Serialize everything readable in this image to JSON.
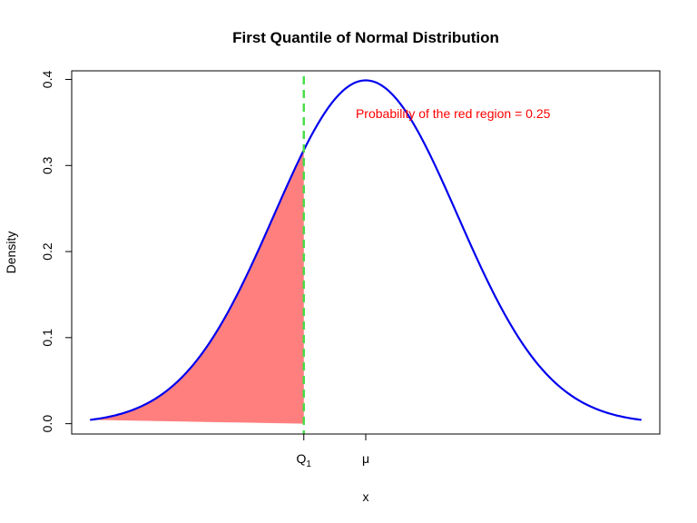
{
  "chart_data": {
    "type": "area",
    "title": "First Quantile of Normal Distribution",
    "xlabel": "x",
    "ylabel": "Density",
    "xlim": [
      -3.2,
      3.2
    ],
    "ylim": [
      -0.012,
      0.41
    ],
    "grid": false,
    "distribution": {
      "mean": 0,
      "sd": 1,
      "x_range": [
        -3,
        3
      ]
    },
    "y_ticks": [
      "0.0",
      "0.1",
      "0.2",
      "0.3",
      "0.4"
    ],
    "x_ticks": [
      {
        "label": "Q",
        "subscript": "1",
        "value": -0.674
      },
      {
        "label": "μ",
        "subscript": "",
        "value": 0
      }
    ],
    "series": [
      {
        "values_note_x": [
          -3,
          -2.5,
          -2,
          -1.5,
          -1,
          -0.674,
          -0.5,
          0,
          0.5,
          1,
          1.5,
          2,
          2.5,
          3
        ],
        "values": [
          0.0044,
          0.0175,
          0.054,
          0.1295,
          0.242,
          0.3178,
          0.3521,
          0.3989,
          0.3521,
          0.242,
          0.1295,
          0.054,
          0.0175,
          0.0044
        ]
      }
    ],
    "shaded_region": {
      "from": -3,
      "to": -0.674,
      "color": "#ff7f7f"
    },
    "quantile_line": {
      "x": -0.674,
      "color": "#44dd44"
    },
    "annotation": {
      "text": "Probability of the red region = 0.25",
      "x": 0.95,
      "y": 0.355,
      "color": "#ff0000"
    },
    "colors": {
      "curve": "#0000ee",
      "axes": "#000000"
    }
  }
}
